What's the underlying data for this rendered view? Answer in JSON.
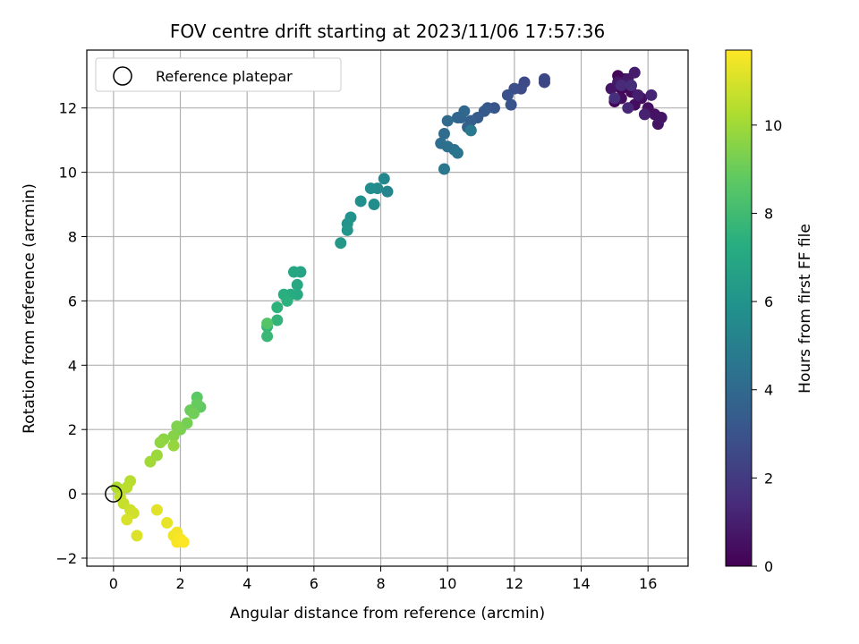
{
  "chart_data": {
    "type": "scatter",
    "title": "FOV centre drift starting at 2023/11/06 17:57:36",
    "xlabel": "Angular distance from reference (arcmin)",
    "ylabel": "Rotation from reference (arcmin)",
    "xlim": [
      -0.8,
      17.2
    ],
    "ylim": [
      -2.25,
      13.8
    ],
    "x_ticks": [
      0,
      2,
      4,
      6,
      8,
      10,
      12,
      14,
      16
    ],
    "y_ticks": [
      -2,
      0,
      2,
      4,
      6,
      8,
      10,
      12
    ],
    "grid": true,
    "legend": {
      "placement": "upper-left",
      "entries": [
        "Reference platepar"
      ]
    },
    "reference_point": {
      "x": 0,
      "y": 0
    },
    "colorbar": {
      "label": "Hours from first FF file",
      "colormap": "viridis",
      "range": [
        0,
        11.7
      ],
      "ticks": [
        0,
        2,
        4,
        6,
        8,
        10
      ]
    },
    "points": [
      {
        "x": 15.0,
        "y": 12.2,
        "c": 0.1
      },
      {
        "x": 15.2,
        "y": 12.6,
        "c": 0.15
      },
      {
        "x": 15.1,
        "y": 13.0,
        "c": 0.2
      },
      {
        "x": 15.3,
        "y": 12.9,
        "c": 0.25
      },
      {
        "x": 15.5,
        "y": 12.5,
        "c": 0.3
      },
      {
        "x": 15.2,
        "y": 12.3,
        "c": 0.35
      },
      {
        "x": 15.6,
        "y": 12.1,
        "c": 0.4
      },
      {
        "x": 15.8,
        "y": 12.3,
        "c": 0.45
      },
      {
        "x": 16.0,
        "y": 12.0,
        "c": 0.5
      },
      {
        "x": 16.2,
        "y": 11.8,
        "c": 0.55
      },
      {
        "x": 16.3,
        "y": 11.5,
        "c": 0.6
      },
      {
        "x": 16.4,
        "y": 11.7,
        "c": 0.65
      },
      {
        "x": 14.9,
        "y": 12.6,
        "c": 0.7
      },
      {
        "x": 15.1,
        "y": 12.8,
        "c": 0.75
      },
      {
        "x": 15.4,
        "y": 12.9,
        "c": 0.8
      },
      {
        "x": 15.6,
        "y": 13.1,
        "c": 0.9
      },
      {
        "x": 15.7,
        "y": 12.4,
        "c": 1.0
      },
      {
        "x": 15.9,
        "y": 11.8,
        "c": 1.1
      },
      {
        "x": 16.1,
        "y": 12.4,
        "c": 1.2
      },
      {
        "x": 15.4,
        "y": 12.0,
        "c": 1.3
      },
      {
        "x": 15.2,
        "y": 12.7,
        "c": 1.4
      },
      {
        "x": 15.5,
        "y": 12.7,
        "c": 1.5
      },
      {
        "x": 15.0,
        "y": 12.3,
        "c": 1.6
      },
      {
        "x": 12.9,
        "y": 12.8,
        "c": 2.4
      },
      {
        "x": 12.9,
        "y": 12.9,
        "c": 2.5
      },
      {
        "x": 12.3,
        "y": 12.8,
        "c": 2.6
      },
      {
        "x": 12.2,
        "y": 12.6,
        "c": 2.7
      },
      {
        "x": 12.0,
        "y": 12.6,
        "c": 2.8
      },
      {
        "x": 11.8,
        "y": 12.4,
        "c": 2.9
      },
      {
        "x": 11.9,
        "y": 12.1,
        "c": 3.0
      },
      {
        "x": 11.4,
        "y": 12.0,
        "c": 3.1
      },
      {
        "x": 11.2,
        "y": 12.0,
        "c": 3.2
      },
      {
        "x": 11.1,
        "y": 11.9,
        "c": 3.3
      },
      {
        "x": 10.9,
        "y": 11.7,
        "c": 3.4
      },
      {
        "x": 10.7,
        "y": 11.6,
        "c": 3.5
      },
      {
        "x": 10.6,
        "y": 11.4,
        "c": 3.6
      },
      {
        "x": 10.4,
        "y": 11.7,
        "c": 3.7
      },
      {
        "x": 10.3,
        "y": 11.7,
        "c": 3.8
      },
      {
        "x": 10.5,
        "y": 11.9,
        "c": 3.9
      },
      {
        "x": 10.0,
        "y": 11.6,
        "c": 4.0
      },
      {
        "x": 9.9,
        "y": 11.2,
        "c": 4.1
      },
      {
        "x": 9.8,
        "y": 10.9,
        "c": 4.2
      },
      {
        "x": 10.0,
        "y": 10.8,
        "c": 4.3
      },
      {
        "x": 10.2,
        "y": 10.7,
        "c": 4.4
      },
      {
        "x": 10.3,
        "y": 10.6,
        "c": 4.5
      },
      {
        "x": 9.9,
        "y": 10.1,
        "c": 4.6
      },
      {
        "x": 10.7,
        "y": 11.3,
        "c": 4.7
      },
      {
        "x": 8.2,
        "y": 9.4,
        "c": 5.3
      },
      {
        "x": 8.1,
        "y": 9.8,
        "c": 5.4
      },
      {
        "x": 7.9,
        "y": 9.5,
        "c": 5.5
      },
      {
        "x": 7.7,
        "y": 9.5,
        "c": 5.6
      },
      {
        "x": 7.8,
        "y": 9.0,
        "c": 5.7
      },
      {
        "x": 7.4,
        "y": 9.1,
        "c": 5.8
      },
      {
        "x": 7.1,
        "y": 8.6,
        "c": 5.9
      },
      {
        "x": 7.0,
        "y": 8.4,
        "c": 6.0
      },
      {
        "x": 7.0,
        "y": 8.2,
        "c": 6.1
      },
      {
        "x": 6.8,
        "y": 7.8,
        "c": 6.2
      },
      {
        "x": 5.6,
        "y": 6.9,
        "c": 6.8
      },
      {
        "x": 5.4,
        "y": 6.9,
        "c": 6.9
      },
      {
        "x": 5.5,
        "y": 6.5,
        "c": 7.0
      },
      {
        "x": 5.5,
        "y": 6.2,
        "c": 7.1
      },
      {
        "x": 5.3,
        "y": 6.2,
        "c": 7.2
      },
      {
        "x": 5.1,
        "y": 6.2,
        "c": 7.3
      },
      {
        "x": 5.2,
        "y": 6.0,
        "c": 7.4
      },
      {
        "x": 4.9,
        "y": 5.8,
        "c": 7.5
      },
      {
        "x": 4.9,
        "y": 5.4,
        "c": 7.6
      },
      {
        "x": 4.6,
        "y": 5.2,
        "c": 7.7
      },
      {
        "x": 4.6,
        "y": 4.9,
        "c": 7.8
      },
      {
        "x": 4.6,
        "y": 5.3,
        "c": 8.5
      },
      {
        "x": 2.5,
        "y": 3.0,
        "c": 8.7
      },
      {
        "x": 2.6,
        "y": 2.7,
        "c": 8.8
      },
      {
        "x": 2.5,
        "y": 2.8,
        "c": 8.9
      },
      {
        "x": 2.3,
        "y": 2.6,
        "c": 9.0
      },
      {
        "x": 2.4,
        "y": 2.5,
        "c": 9.1
      },
      {
        "x": 2.2,
        "y": 2.2,
        "c": 9.2
      },
      {
        "x": 2.0,
        "y": 2.0,
        "c": 9.3
      },
      {
        "x": 1.9,
        "y": 2.1,
        "c": 9.4
      },
      {
        "x": 1.8,
        "y": 1.8,
        "c": 9.5
      },
      {
        "x": 1.5,
        "y": 1.7,
        "c": 9.6
      },
      {
        "x": 1.4,
        "y": 1.6,
        "c": 9.7
      },
      {
        "x": 1.8,
        "y": 1.5,
        "c": 9.8
      },
      {
        "x": 1.3,
        "y": 1.2,
        "c": 9.9
      },
      {
        "x": 1.1,
        "y": 1.0,
        "c": 10.0
      },
      {
        "x": 0.1,
        "y": 0.2,
        "c": 10.2
      },
      {
        "x": 0.2,
        "y": 0.1,
        "c": 10.3
      },
      {
        "x": 0.5,
        "y": 0.4,
        "c": 10.4
      },
      {
        "x": 0.4,
        "y": 0.2,
        "c": 10.5
      },
      {
        "x": 0.2,
        "y": -0.1,
        "c": 10.6
      },
      {
        "x": 0.3,
        "y": -0.3,
        "c": 10.7
      },
      {
        "x": 0.5,
        "y": -0.5,
        "c": 10.8
      },
      {
        "x": 0.6,
        "y": -0.6,
        "c": 10.9
      },
      {
        "x": 0.4,
        "y": -0.8,
        "c": 11.0
      },
      {
        "x": 0.7,
        "y": -1.3,
        "c": 11.1
      },
      {
        "x": 1.3,
        "y": -0.5,
        "c": 11.2
      },
      {
        "x": 1.6,
        "y": -0.9,
        "c": 11.3
      },
      {
        "x": 1.8,
        "y": -1.3,
        "c": 11.4
      },
      {
        "x": 1.9,
        "y": -1.2,
        "c": 11.5
      },
      {
        "x": 1.9,
        "y": -1.5,
        "c": 11.6
      },
      {
        "x": 2.0,
        "y": -1.4,
        "c": 11.6
      },
      {
        "x": 2.1,
        "y": -1.5,
        "c": 11.7
      }
    ]
  }
}
